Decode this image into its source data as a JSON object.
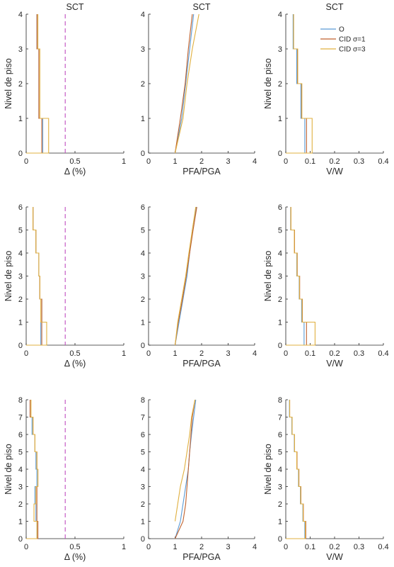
{
  "colors": {
    "O": "#5b9bd5",
    "CID1": "#c0622e",
    "CID3": "#e0b040",
    "limit": "#c04fc0",
    "axis": "#262626"
  },
  "legend": {
    "items": [
      {
        "key": "O",
        "label": "O"
      },
      {
        "key": "CID1",
        "label": "CID σ=1"
      },
      {
        "key": "CID3",
        "label": "CID σ=3"
      }
    ],
    "placement": "top-right of top-right panel"
  },
  "chart_data": [
    {
      "type": "line",
      "row": 0,
      "col": 0,
      "title": "SCT",
      "xlabel": "Δ (%)",
      "ylabel": "Nivel de piso",
      "xlim": [
        0,
        1
      ],
      "ylim": [
        0,
        4
      ],
      "xticks": [
        0,
        0.5,
        1
      ],
      "xticklabels": [
        "0",
        "0.5",
        "1"
      ],
      "yticks": [
        0,
        1,
        2,
        3,
        4
      ],
      "yticklabels": [
        "0",
        "1",
        "2",
        "3",
        "4"
      ],
      "step": true,
      "vline": 0.4,
      "series": [
        {
          "key": "O",
          "values": [
            0.17,
            0.13,
            0.13,
            0.11
          ]
        },
        {
          "key": "CID1",
          "values": [
            0.16,
            0.13,
            0.13,
            0.11
          ]
        },
        {
          "key": "CID3",
          "values": [
            0.23,
            0.14,
            0.14,
            0.12
          ]
        }
      ]
    },
    {
      "type": "line",
      "row": 0,
      "col": 1,
      "title": "SCT",
      "xlabel": "PFA/PGA",
      "ylabel": "",
      "xlim": [
        0,
        4
      ],
      "ylim": [
        0,
        4
      ],
      "xticks": [
        0,
        1,
        2,
        3,
        4
      ],
      "xticklabels": [
        "0",
        "1",
        "2",
        "3",
        "4"
      ],
      "yticks": [
        0,
        1,
        2,
        3,
        4
      ],
      "yticklabels": [
        "0",
        "1",
        "2",
        "3",
        "4"
      ],
      "step": false,
      "series": [
        {
          "key": "O",
          "points": [
            [
              1,
              0
            ],
            [
              1.25,
              1
            ],
            [
              1.4,
              2
            ],
            [
              1.55,
              3
            ],
            [
              1.7,
              4
            ]
          ]
        },
        {
          "key": "CID1",
          "points": [
            [
              1,
              0
            ],
            [
              1.2,
              1
            ],
            [
              1.38,
              2
            ],
            [
              1.5,
              3
            ],
            [
              1.65,
              4
            ]
          ]
        },
        {
          "key": "CID3",
          "points": [
            [
              1,
              0
            ],
            [
              1.3,
              1
            ],
            [
              1.45,
              2
            ],
            [
              1.65,
              3
            ],
            [
              1.9,
              4
            ]
          ]
        }
      ]
    },
    {
      "type": "line",
      "row": 0,
      "col": 2,
      "title": "SCT",
      "xlabel": "V/W",
      "ylabel": "Nivel de piso",
      "xlim": [
        0,
        0.4
      ],
      "ylim": [
        0,
        4
      ],
      "xticks": [
        0,
        0.1,
        0.2,
        0.3,
        0.4
      ],
      "xticklabels": [
        "0",
        "0.1",
        "0.2",
        "0.3",
        "0.4"
      ],
      "yticks": [
        0,
        1,
        2,
        3,
        4
      ],
      "yticklabels": [
        "0",
        "1",
        "2",
        "3",
        "4"
      ],
      "step": true,
      "series": [
        {
          "key": "O",
          "values": [
            0.078,
            0.062,
            0.045,
            0.03
          ]
        },
        {
          "key": "CID1",
          "values": [
            0.085,
            0.065,
            0.048,
            0.032
          ]
        },
        {
          "key": "CID3",
          "values": [
            0.108,
            0.066,
            0.049,
            0.032
          ]
        }
      ]
    },
    {
      "type": "line",
      "row": 1,
      "col": 0,
      "title": "",
      "xlabel": "Δ (%)",
      "ylabel": "Nivel de piso",
      "xlim": [
        0,
        1
      ],
      "ylim": [
        0,
        6
      ],
      "xticks": [
        0,
        0.5,
        1
      ],
      "xticklabels": [
        "0",
        "0.5",
        "1"
      ],
      "yticks": [
        0,
        1,
        2,
        3,
        4,
        5,
        6
      ],
      "yticklabels": [
        "0",
        "1",
        "2",
        "3",
        "4",
        "5",
        "6"
      ],
      "step": true,
      "vline": 0.4,
      "series": [
        {
          "key": "O",
          "values": [
            0.15,
            0.16,
            0.14,
            0.13,
            0.1,
            0.07
          ]
        },
        {
          "key": "CID1",
          "values": [
            0.16,
            0.16,
            0.14,
            0.13,
            0.1,
            0.07
          ]
        },
        {
          "key": "CID3",
          "values": [
            0.21,
            0.15,
            0.14,
            0.13,
            0.1,
            0.07
          ]
        }
      ]
    },
    {
      "type": "line",
      "row": 1,
      "col": 1,
      "title": "",
      "xlabel": "PFA/PGA",
      "ylabel": "",
      "xlim": [
        0,
        4
      ],
      "ylim": [
        0,
        6
      ],
      "xticks": [
        0,
        1,
        2,
        3,
        4
      ],
      "xticklabels": [
        "0",
        "1",
        "2",
        "3",
        "4"
      ],
      "yticks": [
        0,
        1,
        2,
        3,
        4,
        5,
        6
      ],
      "yticklabels": [
        "0",
        "1",
        "2",
        "3",
        "4",
        "5",
        "6"
      ],
      "step": false,
      "series": [
        {
          "key": "O",
          "points": [
            [
              1,
              0
            ],
            [
              1.15,
              1
            ],
            [
              1.3,
              2
            ],
            [
              1.45,
              3
            ],
            [
              1.55,
              4
            ],
            [
              1.65,
              5
            ],
            [
              1.8,
              6
            ]
          ]
        },
        {
          "key": "CID1",
          "points": [
            [
              1,
              0
            ],
            [
              1.12,
              1
            ],
            [
              1.28,
              2
            ],
            [
              1.42,
              3
            ],
            [
              1.55,
              4
            ],
            [
              1.68,
              5
            ],
            [
              1.82,
              6
            ]
          ]
        },
        {
          "key": "CID3",
          "points": [
            [
              1,
              0
            ],
            [
              1.1,
              1
            ],
            [
              1.25,
              2
            ],
            [
              1.4,
              3
            ],
            [
              1.52,
              4
            ],
            [
              1.65,
              5
            ],
            [
              1.78,
              6
            ]
          ]
        }
      ]
    },
    {
      "type": "line",
      "row": 1,
      "col": 2,
      "title": "",
      "xlabel": "V/W",
      "ylabel": "Nivel de piso",
      "xlim": [
        0,
        0.4
      ],
      "ylim": [
        0,
        6
      ],
      "xticks": [
        0,
        0.1,
        0.2,
        0.3,
        0.4
      ],
      "xticklabels": [
        "0",
        "0.1",
        "0.2",
        "0.3",
        "0.4"
      ],
      "yticks": [
        0,
        1,
        2,
        3,
        4,
        5,
        6
      ],
      "yticklabels": [
        "0",
        "1",
        "2",
        "3",
        "4",
        "5",
        "6"
      ],
      "step": true,
      "series": [
        {
          "key": "O",
          "values": [
            0.075,
            0.065,
            0.055,
            0.045,
            0.035,
            0.02
          ]
        },
        {
          "key": "CID1",
          "values": [
            0.085,
            0.068,
            0.057,
            0.047,
            0.036,
            0.021
          ]
        },
        {
          "key": "CID3",
          "values": [
            0.12,
            0.067,
            0.056,
            0.046,
            0.035,
            0.021
          ]
        }
      ]
    },
    {
      "type": "line",
      "row": 2,
      "col": 0,
      "title": "",
      "xlabel": "Δ (%)",
      "ylabel": "Nivel de piso",
      "xlim": [
        0,
        1
      ],
      "ylim": [
        0,
        8
      ],
      "xticks": [
        0,
        0.5,
        1
      ],
      "xticklabels": [
        "0",
        "0.5",
        "1"
      ],
      "yticks": [
        0,
        1,
        2,
        3,
        4,
        5,
        6,
        7,
        8
      ],
      "yticklabels": [
        "0",
        "1",
        "2",
        "3",
        "4",
        "5",
        "6",
        "7",
        "8"
      ],
      "step": true,
      "vline": 0.4,
      "series": [
        {
          "key": "O",
          "values": [
            0.11,
            0.1,
            0.09,
            0.11,
            0.1,
            0.09,
            0.06,
            0.04
          ]
        },
        {
          "key": "CID1",
          "values": [
            0.12,
            0.11,
            0.11,
            0.12,
            0.11,
            0.09,
            0.07,
            0.04
          ]
        },
        {
          "key": "CID3",
          "values": [
            0.11,
            0.08,
            0.1,
            0.12,
            0.11,
            0.09,
            0.07,
            0.05
          ]
        }
      ]
    },
    {
      "type": "line",
      "row": 2,
      "col": 1,
      "title": "",
      "xlabel": "PFA/PGA",
      "ylabel": "",
      "xlim": [
        0,
        4
      ],
      "ylim": [
        0,
        8
      ],
      "xticks": [
        0,
        1,
        2,
        3,
        4
      ],
      "xticklabels": [
        "0",
        "1",
        "2",
        "3",
        "4"
      ],
      "yticks": [
        0,
        1,
        2,
        3,
        4,
        5,
        6,
        7,
        8
      ],
      "yticklabels": [
        "0",
        "1",
        "2",
        "3",
        "4",
        "5",
        "6",
        "7",
        "8"
      ],
      "step": false,
      "series": [
        {
          "key": "O",
          "points": [
            [
              1,
              0
            ],
            [
              1.2,
              1
            ],
            [
              1.3,
              2
            ],
            [
              1.4,
              3
            ],
            [
              1.5,
              4
            ],
            [
              1.55,
              5
            ],
            [
              1.62,
              6
            ],
            [
              1.7,
              7
            ],
            [
              1.78,
              8
            ]
          ]
        },
        {
          "key": "CID1",
          "points": [
            [
              1,
              0
            ],
            [
              1.3,
              1
            ],
            [
              1.4,
              2
            ],
            [
              1.45,
              3
            ],
            [
              1.5,
              4
            ],
            [
              1.55,
              5
            ],
            [
              1.6,
              6
            ],
            [
              1.65,
              7
            ],
            [
              1.75,
              8
            ]
          ]
        },
        {
          "key": "CID3",
          "points": [
            [
              1,
              1
            ],
            [
              1.1,
              2
            ],
            [
              1.2,
              3
            ],
            [
              1.35,
              4
            ],
            [
              1.45,
              5
            ],
            [
              1.55,
              6
            ],
            [
              1.62,
              7
            ],
            [
              1.75,
              8
            ]
          ]
        }
      ]
    },
    {
      "type": "line",
      "row": 2,
      "col": 2,
      "title": "",
      "xlabel": "V/W",
      "ylabel": "Nivel de piso",
      "xlim": [
        0,
        0.4
      ],
      "ylim": [
        0,
        8
      ],
      "xticks": [
        0,
        0.1,
        0.2,
        0.3,
        0.4
      ],
      "xticklabels": [
        "0",
        "0.1",
        "0.2",
        "0.3",
        "0.4"
      ],
      "yticks": [
        0,
        1,
        2,
        3,
        4,
        5,
        6,
        7,
        8
      ],
      "yticklabels": [
        "0",
        "1",
        "2",
        "3",
        "4",
        "5",
        "6",
        "7",
        "8"
      ],
      "step": true,
      "series": [
        {
          "key": "O",
          "values": [
            0.078,
            0.07,
            0.06,
            0.052,
            0.045,
            0.035,
            0.025,
            0.015
          ]
        },
        {
          "key": "CID1",
          "values": [
            0.082,
            0.072,
            0.062,
            0.054,
            0.046,
            0.036,
            0.026,
            0.016
          ]
        },
        {
          "key": "CID3",
          "values": [
            0.08,
            0.071,
            0.061,
            0.053,
            0.045,
            0.036,
            0.026,
            0.016
          ]
        }
      ]
    }
  ]
}
